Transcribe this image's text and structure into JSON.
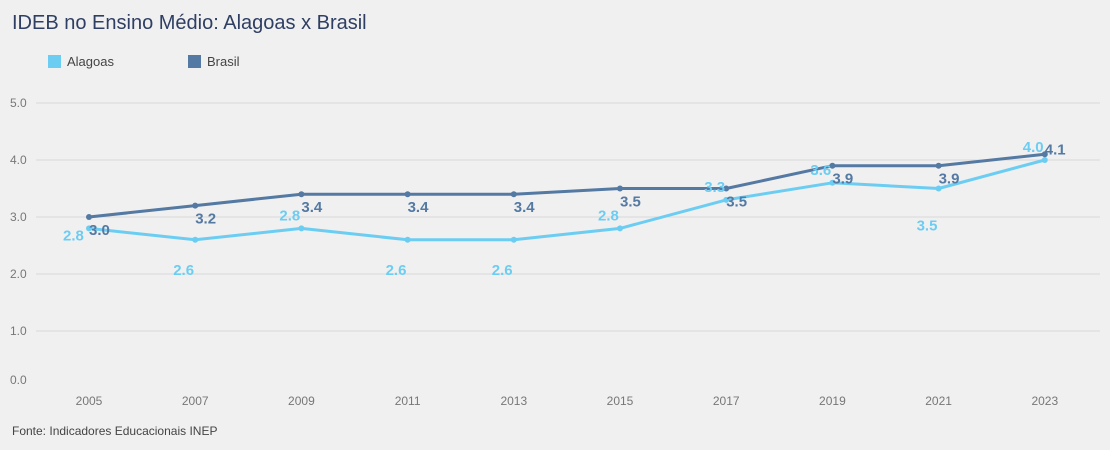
{
  "title": "IDEB no Ensino Médio: Alagoas x Brasil",
  "source": "Fonte: Indicadores Educacionais INEP",
  "chart_data": {
    "type": "line",
    "title": "IDEB no Ensino Médio: Alagoas x Brasil",
    "xlabel": "",
    "ylabel": "",
    "categories": [
      "2005",
      "2007",
      "2009",
      "2011",
      "2013",
      "2015",
      "2017",
      "2019",
      "2021",
      "2023"
    ],
    "ylim": [
      0,
      5
    ],
    "yticks": [
      "0.0",
      "1.0",
      "2.0",
      "3.0",
      "4.0",
      "5.0"
    ],
    "grid": true,
    "legend_position": "top-left",
    "series": [
      {
        "name": "Alagoas",
        "color": "#6ccdf2",
        "values": [
          2.8,
          2.6,
          2.8,
          2.6,
          2.6,
          2.8,
          3.3,
          3.6,
          3.5,
          4.0
        ],
        "labels": [
          "2.8",
          "2.6",
          "2.8",
          "2.6",
          "2.6",
          "2.8",
          "3.3",
          "3.6",
          "3.5",
          "4.0"
        ]
      },
      {
        "name": "Brasil",
        "color": "#5479a3",
        "values": [
          3.0,
          3.2,
          3.4,
          3.4,
          3.4,
          3.5,
          3.5,
          3.9,
          3.9,
          4.1
        ],
        "labels": [
          "3.0",
          "3.2",
          "3.4",
          "3.4",
          "3.4",
          "3.5",
          "3.5",
          "3.9",
          "3.9",
          "4.1"
        ]
      }
    ]
  }
}
